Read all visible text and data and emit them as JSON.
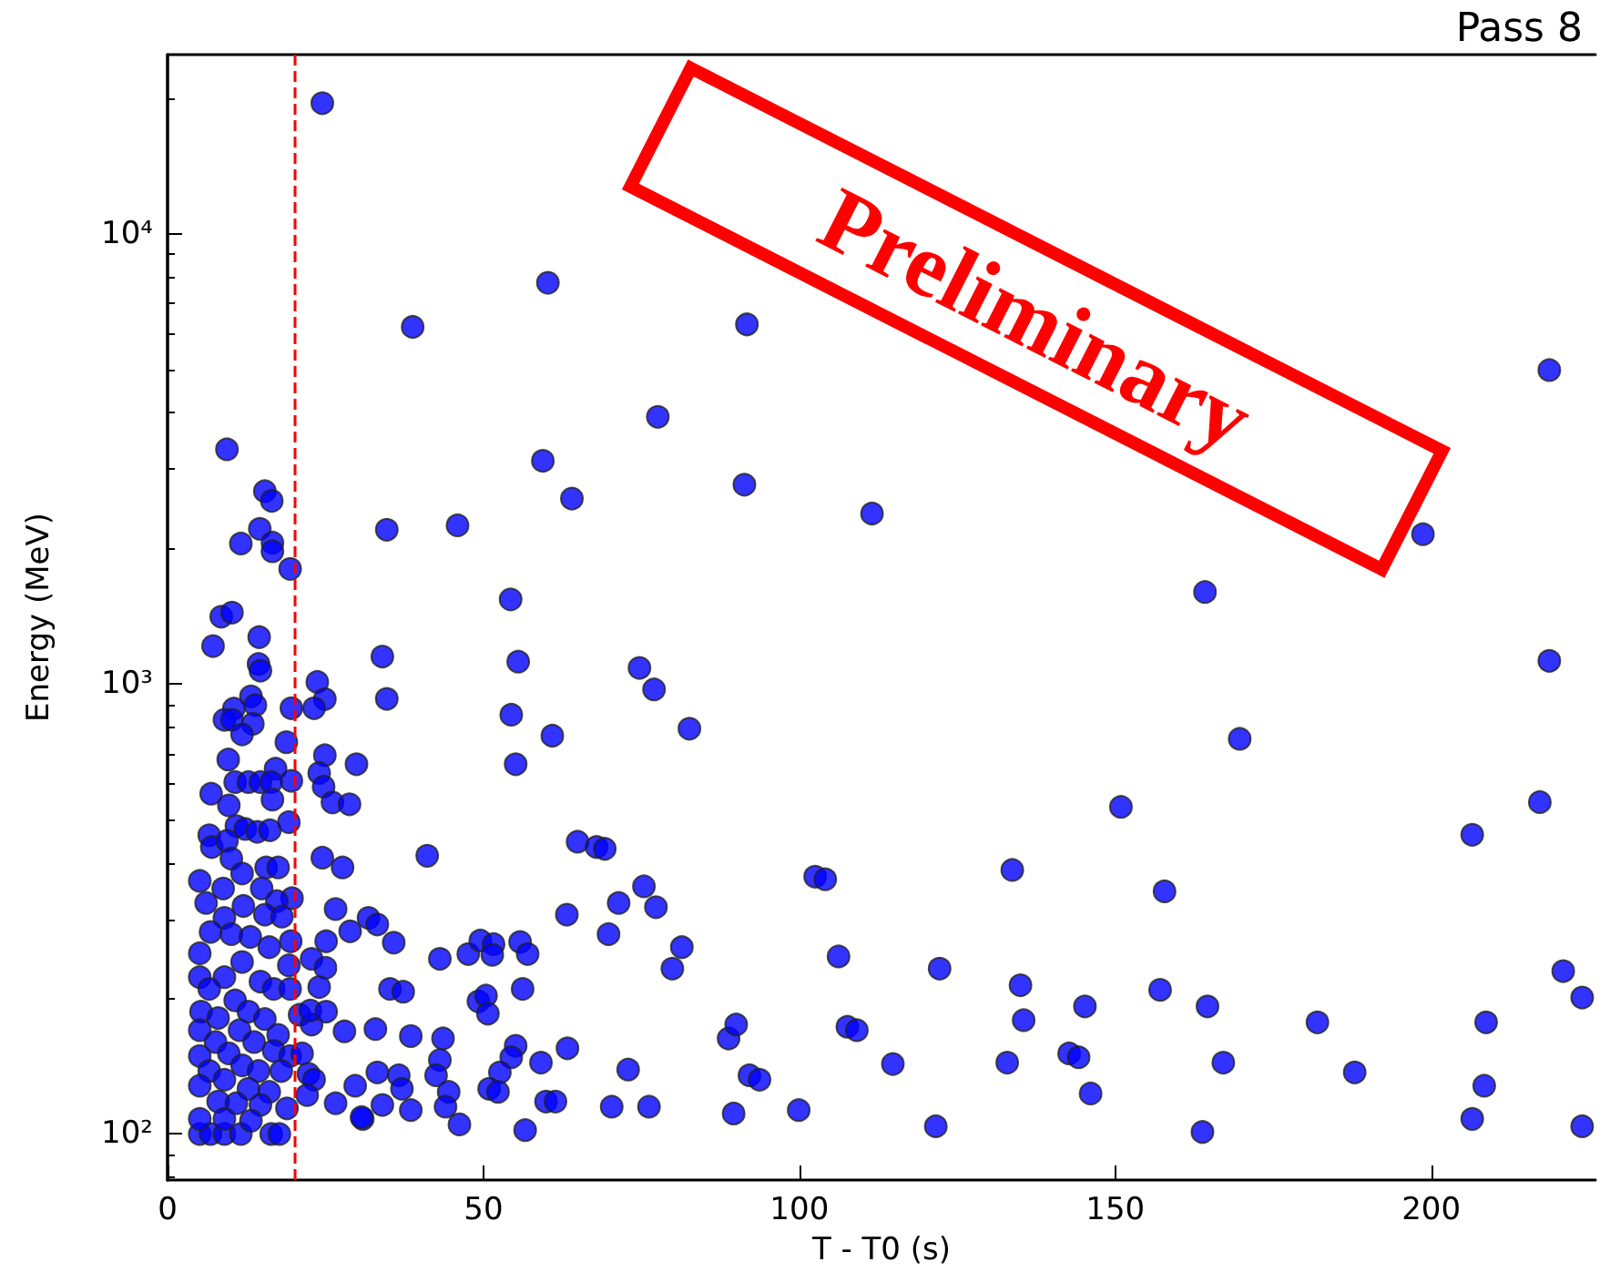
{
  "chart_data": {
    "type": "scatter",
    "title": "Pass 8",
    "xlabel": "T - T0 (s)",
    "ylabel": "Energy (MeV)",
    "annotations": [
      "Preliminary"
    ],
    "xlim": [
      0,
      226
    ],
    "xticks": [
      0,
      50,
      100,
      150,
      200
    ],
    "ylim": [
      79,
      25000
    ],
    "yticks": [
      {
        "value": 100,
        "label": "10²"
      },
      {
        "value": 1000,
        "label": "10³"
      },
      {
        "value": 10000,
        "label": "10⁴"
      }
    ],
    "log": "y",
    "grid": false,
    "marker": "circle",
    "ref_lines": [
      {
        "axis": "x",
        "value": 20,
        "color": "#ff0000",
        "line_style": "dashed"
      }
    ],
    "series": [
      {
        "color": "#0000ff",
        "x": [
          24.5,
          60.2,
          38.8,
          91.7,
          77.6,
          9.4,
          59.4,
          91.3,
          15.4,
          16.5,
          64,
          111.5,
          14.6,
          34.7,
          45.9,
          11.6,
          16.6,
          16.6,
          19.4,
          54.3,
          8.5,
          10.2,
          218.7,
          198.7,
          164.2,
          34,
          55.5,
          74.7,
          77,
          34.7,
          54.4,
          60.9,
          82.6,
          55.1,
          41.1,
          64.9,
          67.9,
          69.2,
          102.5,
          104.1,
          75.4,
          71.4,
          77.3,
          63.2,
          69.8,
          81.4,
          79.9,
          106.2,
          31.8,
          33.2,
          35.8,
          43.1,
          47.6,
          49.5,
          51.6,
          51.4,
          55.8,
          57,
          35.2,
          37.3,
          49.2,
          50.4,
          50.7,
          56.2,
          32.9,
          38.5,
          43.6,
          43.1,
          42.5,
          44.5,
          44,
          46.2,
          33.2,
          36.6,
          37.1,
          34,
          38.5,
          30.9,
          55.1,
          54.4,
          52.6,
          59.1,
          63.3,
          50.9,
          52.3,
          59.9,
          61.4,
          56.6,
          70.3,
          76.2,
          72.9,
          88.8,
          90,
          92.1,
          93.7,
          89.6,
          99.9,
          107.6,
          109.1,
          218.7,
          169.7,
          150.9,
          217.2,
          206.5,
          133.7,
          157.8,
          122.2,
          135,
          220.9,
          223.9,
          135.5,
          145.2,
          157.1,
          164.6,
          182,
          208.7,
          114.8,
          132.9,
          142.7,
          144.2,
          167.1,
          187.9,
          146.1,
          208.4,
          121.6,
          163.8,
          206.5,
          223.9,
          7.2,
          14.5,
          14.4,
          14.7,
          13.2,
          13.9,
          10.5,
          9,
          10.2,
          19.6,
          13.5,
          11.8,
          18.8,
          9.6,
          17.1,
          19.6,
          10.7,
          12.8,
          14.7,
          16.4,
          16.6,
          6.9,
          9.7,
          10.9,
          12.3,
          14.2,
          16.2,
          19.2,
          6.6,
          7,
          9.4,
          10.1,
          5.1,
          15.6,
          17.5,
          11.8,
          8.8,
          14.9,
          19.7,
          17.3,
          6.1,
          12,
          15.4,
          18.1,
          9,
          6.8,
          10.1,
          13.1,
          19.5,
          16.1,
          5.1,
          11.8,
          19.2,
          9,
          5.1,
          14.7,
          16.8,
          6.6,
          10.7,
          12.8,
          19.4,
          5.3,
          8,
          15.4,
          20.9,
          22.8,
          5.1,
          11.4,
          17.5,
          7.6,
          13.7,
          9.7,
          16.8,
          5.1,
          19.4,
          11.8,
          14.4,
          18,
          6.6,
          22.3,
          23.2,
          9,
          5.1,
          12.8,
          16.1,
          18.9,
          22.1,
          8,
          10.9,
          14.7,
          26.6,
          29.7,
          30.7,
          5.1,
          6.8,
          9,
          11.6,
          16.4,
          17.7,
          5.1,
          9,
          13.2,
          23.7,
          24.9,
          23.2,
          24.9,
          24,
          24.7,
          29.9,
          26.1,
          28.8,
          24.5,
          27.7,
          26.6,
          28.9,
          25.1,
          22.8,
          25,
          24,
          22.6,
          25.1,
          28,
          21.3
        ],
        "values": [
          19500,
          7780,
          6210,
          6290,
          3920,
          3320,
          3130,
          2770,
          2680,
          2550,
          2580,
          2390,
          2210,
          2200,
          2250,
          2050,
          2060,
          1970,
          1800,
          1540,
          1410,
          1440,
          4980,
          2150,
          1600,
          1150,
          1120,
          1085,
          972,
          926,
          854,
          767,
          795,
          663,
          415,
          446,
          434,
          430,
          373,
          368,
          355,
          326,
          319,
          307,
          278,
          260,
          233,
          248,
          302,
          292,
          266,
          245,
          251,
          269,
          264,
          250,
          267,
          251,
          210,
          207,
          197,
          203,
          185,
          210,
          171,
          165,
          163,
          146,
          135,
          124,
          115,
          105,
          137,
          135,
          126,
          116,
          113,
          108,
          157,
          148,
          137,
          144,
          155,
          126,
          124,
          118,
          118,
          102,
          115,
          115,
          139,
          163,
          175,
          135,
          132,
          111,
          113,
          173,
          170,
          1125,
          755,
          533,
          546,
          462,
          386,
          346,
          233,
          214,
          230,
          201,
          179,
          192,
          209,
          192,
          177,
          177,
          143,
          144,
          151,
          148,
          144,
          137,
          123,
          128,
          104,
          101,
          108,
          104,
          1213,
          1270,
          1107,
          1070,
          938,
          897,
          881,
          832,
          832,
          883,
          815,
          772,
          742,
          679,
          648,
          609,
          605,
          605,
          605,
          605,
          553,
          570,
          537,
          483,
          476,
          469,
          473,
          493,
          461,
          434,
          448,
          409,
          365,
          391,
          391,
          379,
          351,
          351,
          334,
          329,
          326,
          321,
          307,
          304,
          302,
          281,
          278,
          274,
          268,
          260,
          252,
          241,
          237,
          223,
          223,
          218,
          210,
          210,
          198,
          187,
          210,
          187,
          181,
          180,
          184,
          175,
          170,
          170,
          166,
          160,
          160,
          151,
          153,
          149,
          149,
          142,
          138,
          138,
          138,
          136,
          132,
          132,
          128,
          126,
          124,
          114,
          122,
          118,
          117,
          116,
          117,
          128,
          109,
          100,
          100,
          100,
          100,
          100,
          100,
          108,
          108,
          107,
          1010,
          925,
          883,
          694,
          634,
          591,
          663,
          545,
          540,
          411,
          391,
          316,
          282,
          268,
          245,
          234,
          212,
          188,
          187,
          169,
          151
        ]
      }
    ]
  }
}
